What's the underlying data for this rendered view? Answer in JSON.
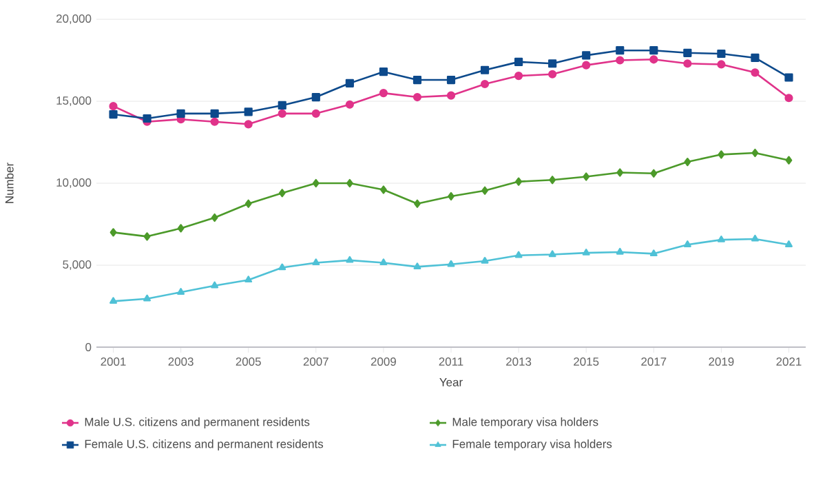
{
  "chart_data": {
    "type": "line",
    "xlabel": "Year",
    "ylabel": "Number",
    "x": [
      2001,
      2002,
      2003,
      2004,
      2005,
      2006,
      2007,
      2008,
      2009,
      2010,
      2011,
      2012,
      2013,
      2014,
      2015,
      2016,
      2017,
      2018,
      2019,
      2020,
      2021
    ],
    "series": [
      {
        "name": "Male U.S. citizens and permanent residents",
        "color": "#e0338a",
        "marker": "circle",
        "values": [
          14700,
          13750,
          13900,
          13750,
          13600,
          14250,
          14250,
          14800,
          15500,
          15250,
          15350,
          16050,
          16550,
          16650,
          17200,
          17500,
          17550,
          17300,
          17250,
          16750,
          15200
        ]
      },
      {
        "name": "Female U.S. citizens and permanent residents",
        "color": "#0d4a8c",
        "marker": "square",
        "values": [
          14200,
          13950,
          14250,
          14250,
          14350,
          14750,
          15250,
          16100,
          16800,
          16300,
          16300,
          16900,
          17400,
          17300,
          17800,
          18100,
          18100,
          17950,
          17900,
          17650,
          16450
        ]
      },
      {
        "name": "Male temporary visa holders",
        "color": "#4c9a2a",
        "marker": "diamond",
        "values": [
          7000,
          6750,
          7250,
          7900,
          8750,
          9400,
          10000,
          10000,
          9600,
          8750,
          9200,
          9550,
          10100,
          10200,
          10400,
          10650,
          10600,
          11300,
          11750,
          11850,
          11400
        ]
      },
      {
        "name": "Female temporary visa holders",
        "color": "#4fc1d6",
        "marker": "triangle",
        "values": [
          2800,
          2950,
          3350,
          3750,
          4100,
          4850,
          5150,
          5300,
          5150,
          4900,
          5050,
          5250,
          5600,
          5650,
          5750,
          5800,
          5700,
          6250,
          6550,
          6600,
          6250
        ]
      }
    ],
    "xlim": [
      2000.5,
      2021.5
    ],
    "xticks": [
      2001,
      2003,
      2005,
      2007,
      2009,
      2011,
      2013,
      2015,
      2017,
      2019,
      2021
    ],
    "ylim": [
      0,
      20000
    ],
    "yticks": [
      0,
      {
        "value": 5000,
        "label": "5,000"
      },
      {
        "value": 10000,
        "label": "10,000"
      },
      {
        "value": 15000,
        "label": "15,000"
      },
      {
        "value": 20000,
        "label": "20,000"
      }
    ],
    "grid": "y",
    "legend": "bottom",
    "line_style": "solid"
  }
}
